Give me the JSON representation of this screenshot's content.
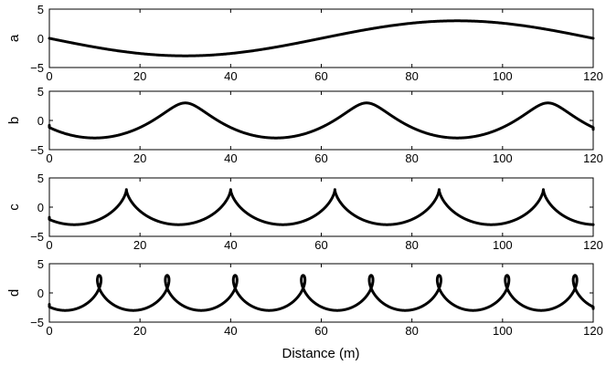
{
  "chart_data": {
    "type": "line",
    "xlabel": "Distance (m)",
    "xlim": [
      0,
      120
    ],
    "x_ticks": [
      "0",
      "20",
      "40",
      "60",
      "80",
      "100",
      "120"
    ],
    "ylim": [
      -5,
      5
    ],
    "y_ticks": [
      "5",
      "0",
      "−5"
    ],
    "grid": false,
    "panels": [
      {
        "label": "a",
        "curve": "sinusoid",
        "wavelength": 120,
        "crest_x": 90,
        "trough_y": -3,
        "crest_y": 3
      },
      {
        "label": "b",
        "curve": "trochoid",
        "wavelength": 40,
        "crest_x": [
          30,
          70,
          110
        ],
        "trough_y": -3,
        "crest_y": 3
      },
      {
        "label": "c",
        "curve": "cycloid",
        "wavelength": 23,
        "crest_x": [
          17,
          40,
          63,
          86,
          109
        ],
        "trough_y": -3,
        "crest_y": 3
      },
      {
        "label": "d",
        "curve": "looped trochoid",
        "wavelength": 15,
        "crest_x": [
          11,
          26,
          41,
          56,
          71,
          86,
          101,
          116
        ],
        "trough_y": -3,
        "crest_y": 3
      }
    ]
  }
}
